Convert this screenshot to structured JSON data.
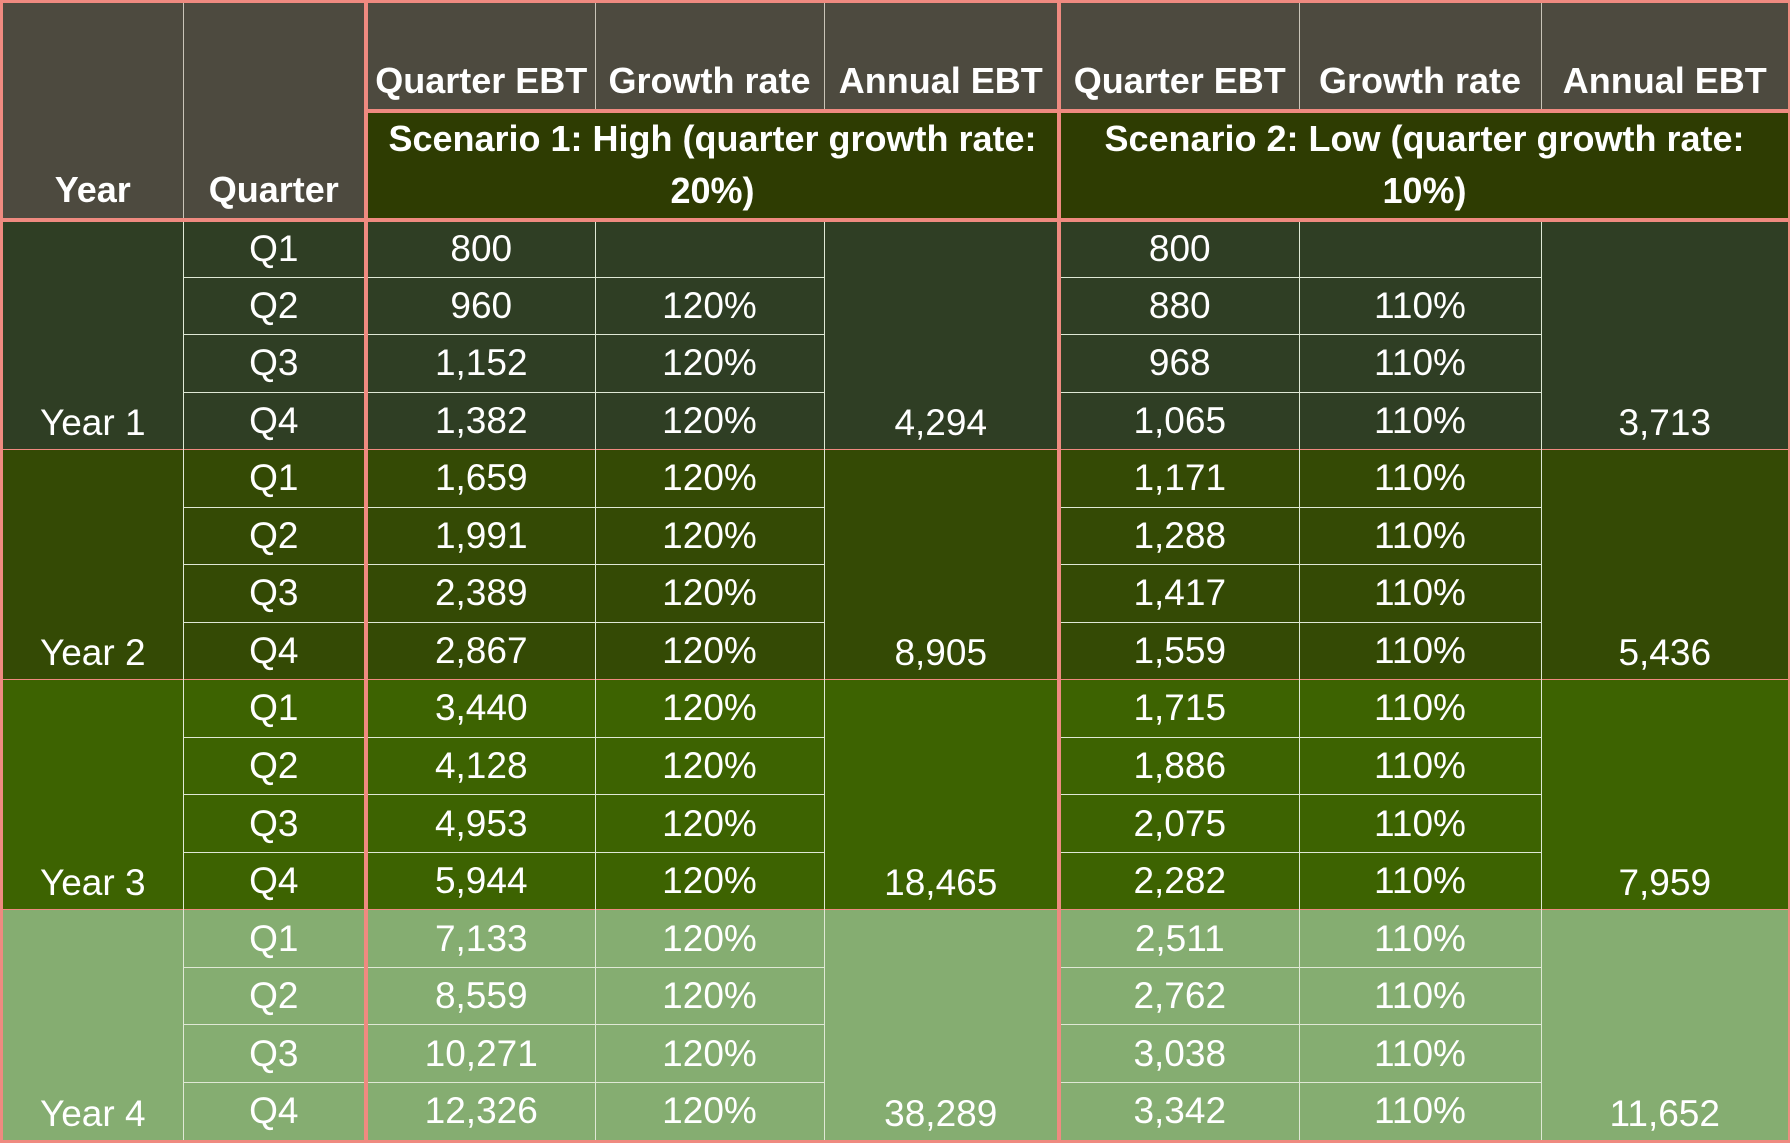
{
  "header": {
    "year": "Year",
    "quarter": "Quarter",
    "s1_quarter_ebt": "Quarter EBT",
    "s1_growth_rate": "Growth rate",
    "s1_annual_ebt": "Annual EBT",
    "s2_quarter_ebt": "Quarter EBT",
    "s2_growth_rate": "Growth rate",
    "s2_annual_ebt": "Annual EBT",
    "scenario1": "Scenario 1: High (quarter growth rate: 20%)",
    "scenario2": "Scenario 2: Low (quarter growth rate: 10%)"
  },
  "years": [
    {
      "label": "Year 1",
      "s1_annual": "4,294",
      "s2_annual": "3,713",
      "rows": [
        {
          "q": "Q1",
          "s1_ebt": "800",
          "s1_rate": "",
          "s2_ebt": "800",
          "s2_rate": ""
        },
        {
          "q": "Q2",
          "s1_ebt": "960",
          "s1_rate": "120%",
          "s2_ebt": "880",
          "s2_rate": "110%"
        },
        {
          "q": "Q3",
          "s1_ebt": "1,152",
          "s1_rate": "120%",
          "s2_ebt": "968",
          "s2_rate": "110%"
        },
        {
          "q": "Q4",
          "s1_ebt": "1,382",
          "s1_rate": "120%",
          "s2_ebt": "1,065",
          "s2_rate": "110%"
        }
      ]
    },
    {
      "label": "Year 2",
      "s1_annual": "8,905",
      "s2_annual": "5,436",
      "rows": [
        {
          "q": "Q1",
          "s1_ebt": "1,659",
          "s1_rate": "120%",
          "s2_ebt": "1,171",
          "s2_rate": "110%"
        },
        {
          "q": "Q2",
          "s1_ebt": "1,991",
          "s1_rate": "120%",
          "s2_ebt": "1,288",
          "s2_rate": "110%"
        },
        {
          "q": "Q3",
          "s1_ebt": "2,389",
          "s1_rate": "120%",
          "s2_ebt": "1,417",
          "s2_rate": "110%"
        },
        {
          "q": "Q4",
          "s1_ebt": "2,867",
          "s1_rate": "120%",
          "s2_ebt": "1,559",
          "s2_rate": "110%"
        }
      ]
    },
    {
      "label": "Year 3",
      "s1_annual": "18,465",
      "s2_annual": "7,959",
      "rows": [
        {
          "q": "Q1",
          "s1_ebt": "3,440",
          "s1_rate": "120%",
          "s2_ebt": "1,715",
          "s2_rate": "110%"
        },
        {
          "q": "Q2",
          "s1_ebt": "4,128",
          "s1_rate": "120%",
          "s2_ebt": "1,886",
          "s2_rate": "110%"
        },
        {
          "q": "Q3",
          "s1_ebt": "4,953",
          "s1_rate": "120%",
          "s2_ebt": "2,075",
          "s2_rate": "110%"
        },
        {
          "q": "Q4",
          "s1_ebt": "5,944",
          "s1_rate": "120%",
          "s2_ebt": "2,282",
          "s2_rate": "110%"
        }
      ]
    },
    {
      "label": "Year 4",
      "s1_annual": "38,289",
      "s2_annual": "11,652",
      "rows": [
        {
          "q": "Q1",
          "s1_ebt": "7,133",
          "s1_rate": "120%",
          "s2_ebt": "2,511",
          "s2_rate": "110%"
        },
        {
          "q": "Q2",
          "s1_ebt": "8,559",
          "s1_rate": "120%",
          "s2_ebt": "2,762",
          "s2_rate": "110%"
        },
        {
          "q": "Q3",
          "s1_ebt": "10,271",
          "s1_rate": "120%",
          "s2_ebt": "3,038",
          "s2_rate": "110%"
        },
        {
          "q": "Q4",
          "s1_ebt": "12,326",
          "s1_rate": "120%",
          "s2_ebt": "3,342",
          "s2_rate": "110%"
        }
      ]
    }
  ],
  "colors": {
    "border": "#ef8a80",
    "header_bg": "#4d4a3f",
    "scenario_bg": "#2e3c02",
    "year1_bg": "#2f3e24",
    "year2_bg": "#344a05",
    "year3_bg": "#3d6301",
    "year4_bg": "#85ad71"
  }
}
